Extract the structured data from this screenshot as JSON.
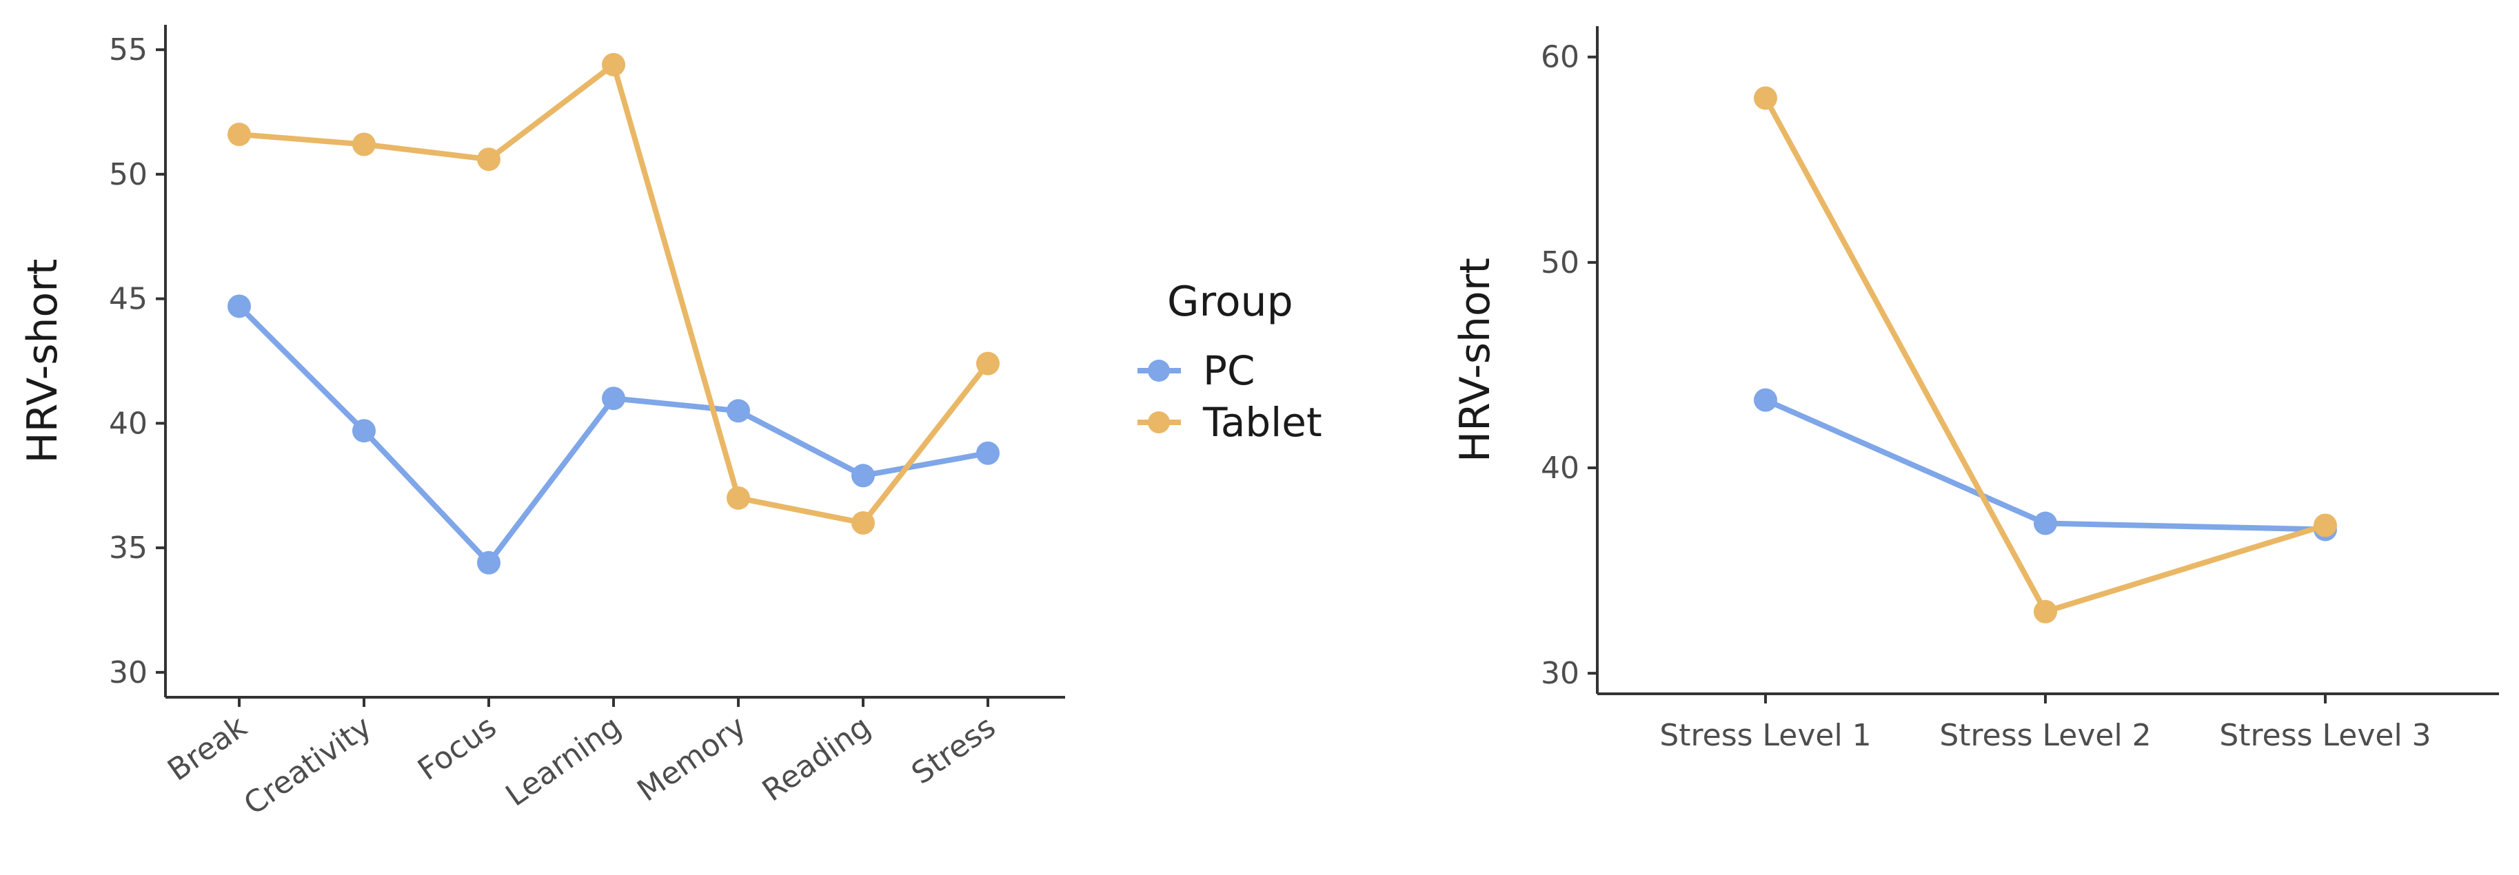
{
  "colors": {
    "PC": "#7ea6e8",
    "Tablet": "#e9b765"
  },
  "legend": {
    "title": "Group",
    "entries": [
      {
        "name": "PC",
        "color": "#7ea6e8"
      },
      {
        "name": "Tablet",
        "color": "#e9b765"
      }
    ]
  },
  "chart_data": [
    {
      "type": "line",
      "ylabel": "HRV-short",
      "xlabel": "",
      "ylim": [
        29,
        56
      ],
      "yticks": [
        30,
        35,
        40,
        45,
        50,
        55
      ],
      "categories": [
        "Break",
        "Creativity",
        "Focus",
        "Learning",
        "Memory",
        "Reading",
        "Stress"
      ],
      "series": [
        {
          "name": "PC",
          "values": [
            44.7,
            39.7,
            34.4,
            41.0,
            40.5,
            37.9,
            38.8
          ]
        },
        {
          "name": "Tablet",
          "values": [
            51.6,
            51.2,
            50.6,
            54.4,
            37.0,
            36.0,
            42.4
          ]
        }
      ]
    },
    {
      "type": "line",
      "ylabel": "HRV-short",
      "xlabel": "",
      "ylim": [
        29,
        61.5
      ],
      "yticks": [
        30,
        40,
        50,
        60
      ],
      "categories": [
        "Stress Level 1",
        "Stress Level 2",
        "Stress Level 3"
      ],
      "series": [
        {
          "name": "PC",
          "values": [
            43.3,
            37.3,
            37.0
          ]
        },
        {
          "name": "Tablet",
          "values": [
            58.0,
            33.0,
            37.2
          ]
        }
      ]
    }
  ]
}
